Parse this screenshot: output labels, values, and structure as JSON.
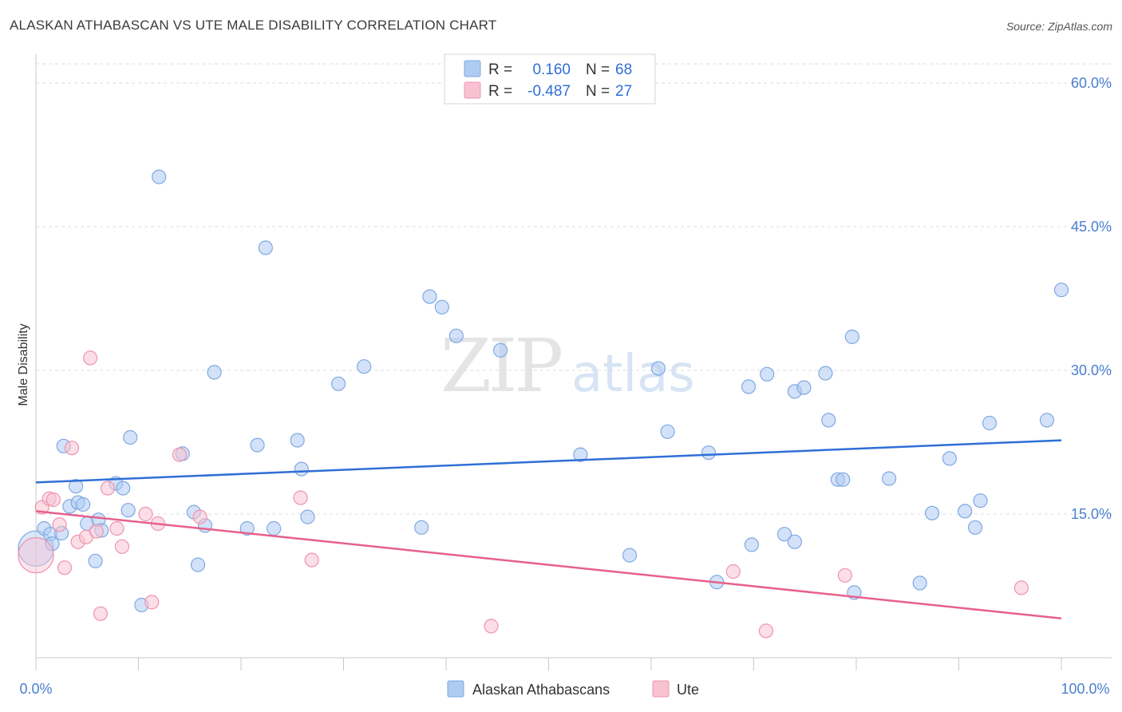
{
  "title": "ALASKAN ATHABASCAN VS UTE MALE DISABILITY CORRELATION CHART",
  "source": "Source: ZipAtlas.com",
  "watermark": {
    "left": "ZIP",
    "right": "atlas"
  },
  "colors": {
    "series1_fill": "#aecbf2",
    "series1_stroke": "#7fa9e2",
    "series1_line": "#2f6fd6",
    "series2_fill": "#f8c2d2",
    "series2_stroke": "#ee94b0",
    "series2_line": "#e8608b",
    "tick_text": "#4a7fd0",
    "grid": "#dddddd"
  },
  "chart_data": {
    "type": "scatter",
    "title": "ALASKAN ATHABASCAN VS UTE MALE DISABILITY CORRELATION CHART",
    "xlabel": "",
    "ylabel": "Male Disability",
    "xlim": [
      0,
      100
    ],
    "ylim": [
      0,
      62
    ],
    "x_tick_labels": [
      "0.0%",
      "100.0%"
    ],
    "y_ticks": [
      15,
      30,
      45,
      60
    ],
    "y_tick_labels": [
      "15.0%",
      "30.0%",
      "45.0%",
      "60.0%"
    ],
    "legend": [
      {
        "r_label": "R =",
        "r": "0.160",
        "n_label": "N =",
        "n": "68"
      },
      {
        "r_label": "R =",
        "r": "-0.487",
        "n_label": "N =",
        "n": "27"
      }
    ],
    "series": [
      {
        "name": "Alaskan Athabascans",
        "trend": {
          "x": [
            0,
            100
          ],
          "y": [
            18.3,
            22.7
          ]
        },
        "points": [
          {
            "x": 0.0,
            "y": 11.4,
            "big": true
          },
          {
            "x": 0.8,
            "y": 13.5
          },
          {
            "x": 1.4,
            "y": 12.9
          },
          {
            "x": 1.6,
            "y": 11.9
          },
          {
            "x": 2.5,
            "y": 13.0
          },
          {
            "x": 2.7,
            "y": 22.1
          },
          {
            "x": 3.3,
            "y": 15.8
          },
          {
            "x": 3.9,
            "y": 17.9
          },
          {
            "x": 4.1,
            "y": 16.2
          },
          {
            "x": 4.6,
            "y": 16.0
          },
          {
            "x": 5.0,
            "y": 14.0
          },
          {
            "x": 5.8,
            "y": 10.1
          },
          {
            "x": 6.1,
            "y": 14.4
          },
          {
            "x": 6.4,
            "y": 13.3
          },
          {
            "x": 7.8,
            "y": 18.2
          },
          {
            "x": 8.5,
            "y": 17.7
          },
          {
            "x": 9.0,
            "y": 15.4
          },
          {
            "x": 9.2,
            "y": 23.0
          },
          {
            "x": 10.3,
            "y": 5.5
          },
          {
            "x": 12.0,
            "y": 50.2
          },
          {
            "x": 14.3,
            "y": 21.3
          },
          {
            "x": 15.4,
            "y": 15.2
          },
          {
            "x": 15.8,
            "y": 9.7
          },
          {
            "x": 16.5,
            "y": 13.8
          },
          {
            "x": 17.4,
            "y": 29.8
          },
          {
            "x": 20.6,
            "y": 13.5
          },
          {
            "x": 21.6,
            "y": 22.2
          },
          {
            "x": 22.4,
            "y": 42.8
          },
          {
            "x": 23.2,
            "y": 13.5
          },
          {
            "x": 25.5,
            "y": 22.7
          },
          {
            "x": 25.9,
            "y": 19.7
          },
          {
            "x": 26.5,
            "y": 14.7
          },
          {
            "x": 29.5,
            "y": 28.6
          },
          {
            "x": 32.0,
            "y": 30.4
          },
          {
            "x": 37.6,
            "y": 13.6
          },
          {
            "x": 38.4,
            "y": 37.7
          },
          {
            "x": 39.6,
            "y": 36.6
          },
          {
            "x": 41.0,
            "y": 33.6
          },
          {
            "x": 45.3,
            "y": 32.1
          },
          {
            "x": 53.1,
            "y": 21.2
          },
          {
            "x": 57.9,
            "y": 10.7
          },
          {
            "x": 60.7,
            "y": 30.2
          },
          {
            "x": 61.6,
            "y": 23.6
          },
          {
            "x": 65.6,
            "y": 21.4
          },
          {
            "x": 66.4,
            "y": 7.9
          },
          {
            "x": 69.5,
            "y": 28.3
          },
          {
            "x": 69.8,
            "y": 11.8
          },
          {
            "x": 71.3,
            "y": 29.6
          },
          {
            "x": 73.0,
            "y": 12.9
          },
          {
            "x": 74.0,
            "y": 12.1
          },
          {
            "x": 74.0,
            "y": 27.8
          },
          {
            "x": 74.9,
            "y": 28.2
          },
          {
            "x": 77.0,
            "y": 29.7
          },
          {
            "x": 77.3,
            "y": 24.8
          },
          {
            "x": 78.2,
            "y": 18.6
          },
          {
            "x": 78.7,
            "y": 18.6
          },
          {
            "x": 79.6,
            "y": 33.5
          },
          {
            "x": 79.8,
            "y": 6.8
          },
          {
            "x": 83.2,
            "y": 18.7
          },
          {
            "x": 86.2,
            "y": 7.8
          },
          {
            "x": 87.4,
            "y": 15.1
          },
          {
            "x": 89.1,
            "y": 20.8
          },
          {
            "x": 90.6,
            "y": 15.3
          },
          {
            "x": 91.6,
            "y": 13.6
          },
          {
            "x": 92.1,
            "y": 16.4
          },
          {
            "x": 93.0,
            "y": 24.5
          },
          {
            "x": 98.6,
            "y": 24.8
          },
          {
            "x": 100.0,
            "y": 38.4
          }
        ]
      },
      {
        "name": "Ute",
        "trend": {
          "x": [
            0,
            100
          ],
          "y": [
            15.3,
            4.1
          ]
        },
        "points": [
          {
            "x": 0.0,
            "y": 10.7,
            "big": true
          },
          {
            "x": 0.6,
            "y": 15.7
          },
          {
            "x": 1.3,
            "y": 16.6
          },
          {
            "x": 1.7,
            "y": 16.5
          },
          {
            "x": 2.3,
            "y": 13.9
          },
          {
            "x": 2.8,
            "y": 9.4
          },
          {
            "x": 3.5,
            "y": 21.9
          },
          {
            "x": 4.1,
            "y": 12.1
          },
          {
            "x": 4.9,
            "y": 12.6
          },
          {
            "x": 5.3,
            "y": 31.3
          },
          {
            "x": 5.9,
            "y": 13.2
          },
          {
            "x": 6.3,
            "y": 4.6
          },
          {
            "x": 7.0,
            "y": 17.7
          },
          {
            "x": 7.9,
            "y": 13.5
          },
          {
            "x": 8.4,
            "y": 11.6
          },
          {
            "x": 10.7,
            "y": 15.0
          },
          {
            "x": 11.3,
            "y": 5.8
          },
          {
            "x": 11.9,
            "y": 14.0
          },
          {
            "x": 14.0,
            "y": 21.2
          },
          {
            "x": 16.0,
            "y": 14.7
          },
          {
            "x": 25.8,
            "y": 16.7
          },
          {
            "x": 26.9,
            "y": 10.2
          },
          {
            "x": 44.4,
            "y": 3.3
          },
          {
            "x": 68.0,
            "y": 9.0
          },
          {
            "x": 71.2,
            "y": 2.8
          },
          {
            "x": 78.9,
            "y": 8.6
          },
          {
            "x": 96.1,
            "y": 7.3
          }
        ]
      }
    ]
  },
  "bottom_legend": [
    {
      "label": "Alaskan Athabascans"
    },
    {
      "label": "Ute"
    }
  ]
}
